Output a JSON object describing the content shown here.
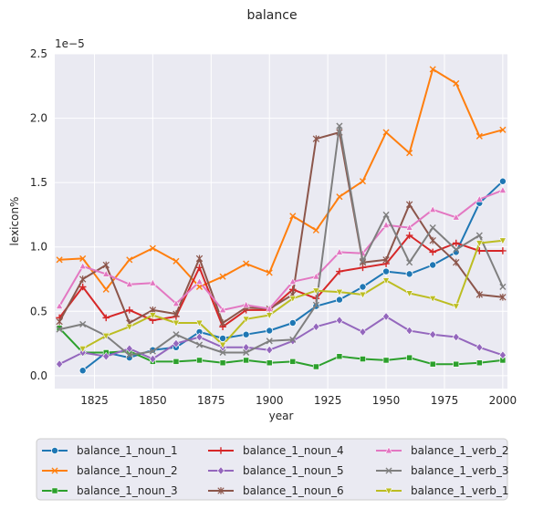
{
  "chart_data": {
    "type": "line",
    "title": "balance",
    "xlabel": "year",
    "ylabel": "lexicon%",
    "y_multiplier_label": "1e−5",
    "xlim": [
      1808,
      2002
    ],
    "ylim": [
      -0.1,
      2.5
    ],
    "x_ticks": [
      1825,
      1850,
      1875,
      1900,
      1925,
      1950,
      1975,
      2000
    ],
    "y_ticks": [
      0.0,
      0.5,
      1.0,
      1.5,
      2.0,
      2.5
    ],
    "y_tick_labels": [
      "0.0",
      "0.5",
      "1.0",
      "1.5",
      "2.0",
      "2.5"
    ],
    "grid": true,
    "legend_position": "bottom",
    "x": [
      1810,
      1820,
      1830,
      1840,
      1850,
      1860,
      1870,
      1880,
      1890,
      1900,
      1910,
      1920,
      1930,
      1940,
      1950,
      1960,
      1970,
      1980,
      1990,
      2000
    ],
    "series": [
      {
        "name": "balance_1_noun_1",
        "color": "#1f77b4",
        "marker": "circle",
        "values": [
          null,
          0.04,
          0.18,
          0.14,
          0.2,
          0.22,
          0.34,
          0.29,
          0.32,
          0.35,
          0.41,
          0.54,
          0.59,
          0.69,
          0.81,
          0.79,
          0.86,
          0.96,
          1.34,
          1.51
        ]
      },
      {
        "name": "balance_1_noun_2",
        "color": "#ff7f0e",
        "marker": "x",
        "values": [
          0.9,
          0.91,
          0.67,
          0.9,
          0.99,
          0.89,
          0.69,
          0.77,
          0.87,
          0.8,
          1.24,
          1.13,
          1.39,
          1.51,
          1.89,
          1.73,
          2.38,
          2.27,
          1.86,
          1.91
        ]
      },
      {
        "name": "balance_1_noun_3",
        "color": "#2ca02c",
        "marker": "square",
        "values": [
          0.37,
          0.18,
          0.18,
          0.19,
          0.11,
          0.11,
          0.12,
          0.1,
          0.12,
          0.1,
          0.11,
          0.07,
          0.15,
          0.13,
          0.12,
          0.14,
          0.09,
          0.09,
          0.1,
          0.12
        ]
      },
      {
        "name": "balance_1_noun_4",
        "color": "#d62728",
        "marker": "plus",
        "values": [
          0.45,
          0.69,
          0.45,
          0.51,
          0.43,
          0.46,
          0.84,
          0.38,
          0.51,
          0.51,
          0.67,
          0.6,
          0.81,
          0.84,
          0.87,
          1.09,
          0.96,
          1.03,
          0.97,
          0.97
        ]
      },
      {
        "name": "balance_1_noun_5",
        "color": "#9467bd",
        "marker": "diamond",
        "values": [
          0.09,
          0.18,
          0.15,
          0.21,
          0.13,
          0.25,
          0.3,
          0.22,
          0.22,
          0.2,
          0.27,
          0.38,
          0.43,
          0.34,
          0.46,
          0.35,
          0.32,
          0.3,
          0.22,
          0.16
        ]
      },
      {
        "name": "balance_1_noun_6",
        "color": "#8c564b",
        "marker": "star",
        "values": [
          0.42,
          0.75,
          0.86,
          0.41,
          0.51,
          0.48,
          0.91,
          0.41,
          0.53,
          0.52,
          0.63,
          1.84,
          1.89,
          0.88,
          0.9,
          1.33,
          1.05,
          0.88,
          0.63,
          0.61
        ]
      },
      {
        "name": "balance_1_verb_2",
        "color": "#e377c2",
        "marker": "triangle",
        "values": [
          0.54,
          0.85,
          0.79,
          0.71,
          0.72,
          0.56,
          0.73,
          0.51,
          0.55,
          0.52,
          0.73,
          0.77,
          0.96,
          0.95,
          1.17,
          1.15,
          1.29,
          1.23,
          1.37,
          1.44
        ]
      },
      {
        "name": "balance_1_verb_3",
        "color": "#7f7f7f",
        "marker": "x",
        "values": [
          0.36,
          0.4,
          0.31,
          0.16,
          0.19,
          0.32,
          0.24,
          0.18,
          0.18,
          0.27,
          0.28,
          0.55,
          1.94,
          0.89,
          1.25,
          0.88,
          1.15,
          0.98,
          1.09,
          0.69
        ]
      },
      {
        "name": "balance_1_verb_1",
        "color": "#bcbd22",
        "marker": "triangle-down",
        "values": [
          null,
          0.21,
          0.31,
          0.38,
          0.47,
          0.41,
          0.41,
          0.24,
          0.44,
          0.47,
          0.6,
          0.66,
          0.65,
          0.63,
          0.74,
          0.64,
          0.6,
          0.54,
          1.03,
          1.05
        ]
      }
    ]
  }
}
